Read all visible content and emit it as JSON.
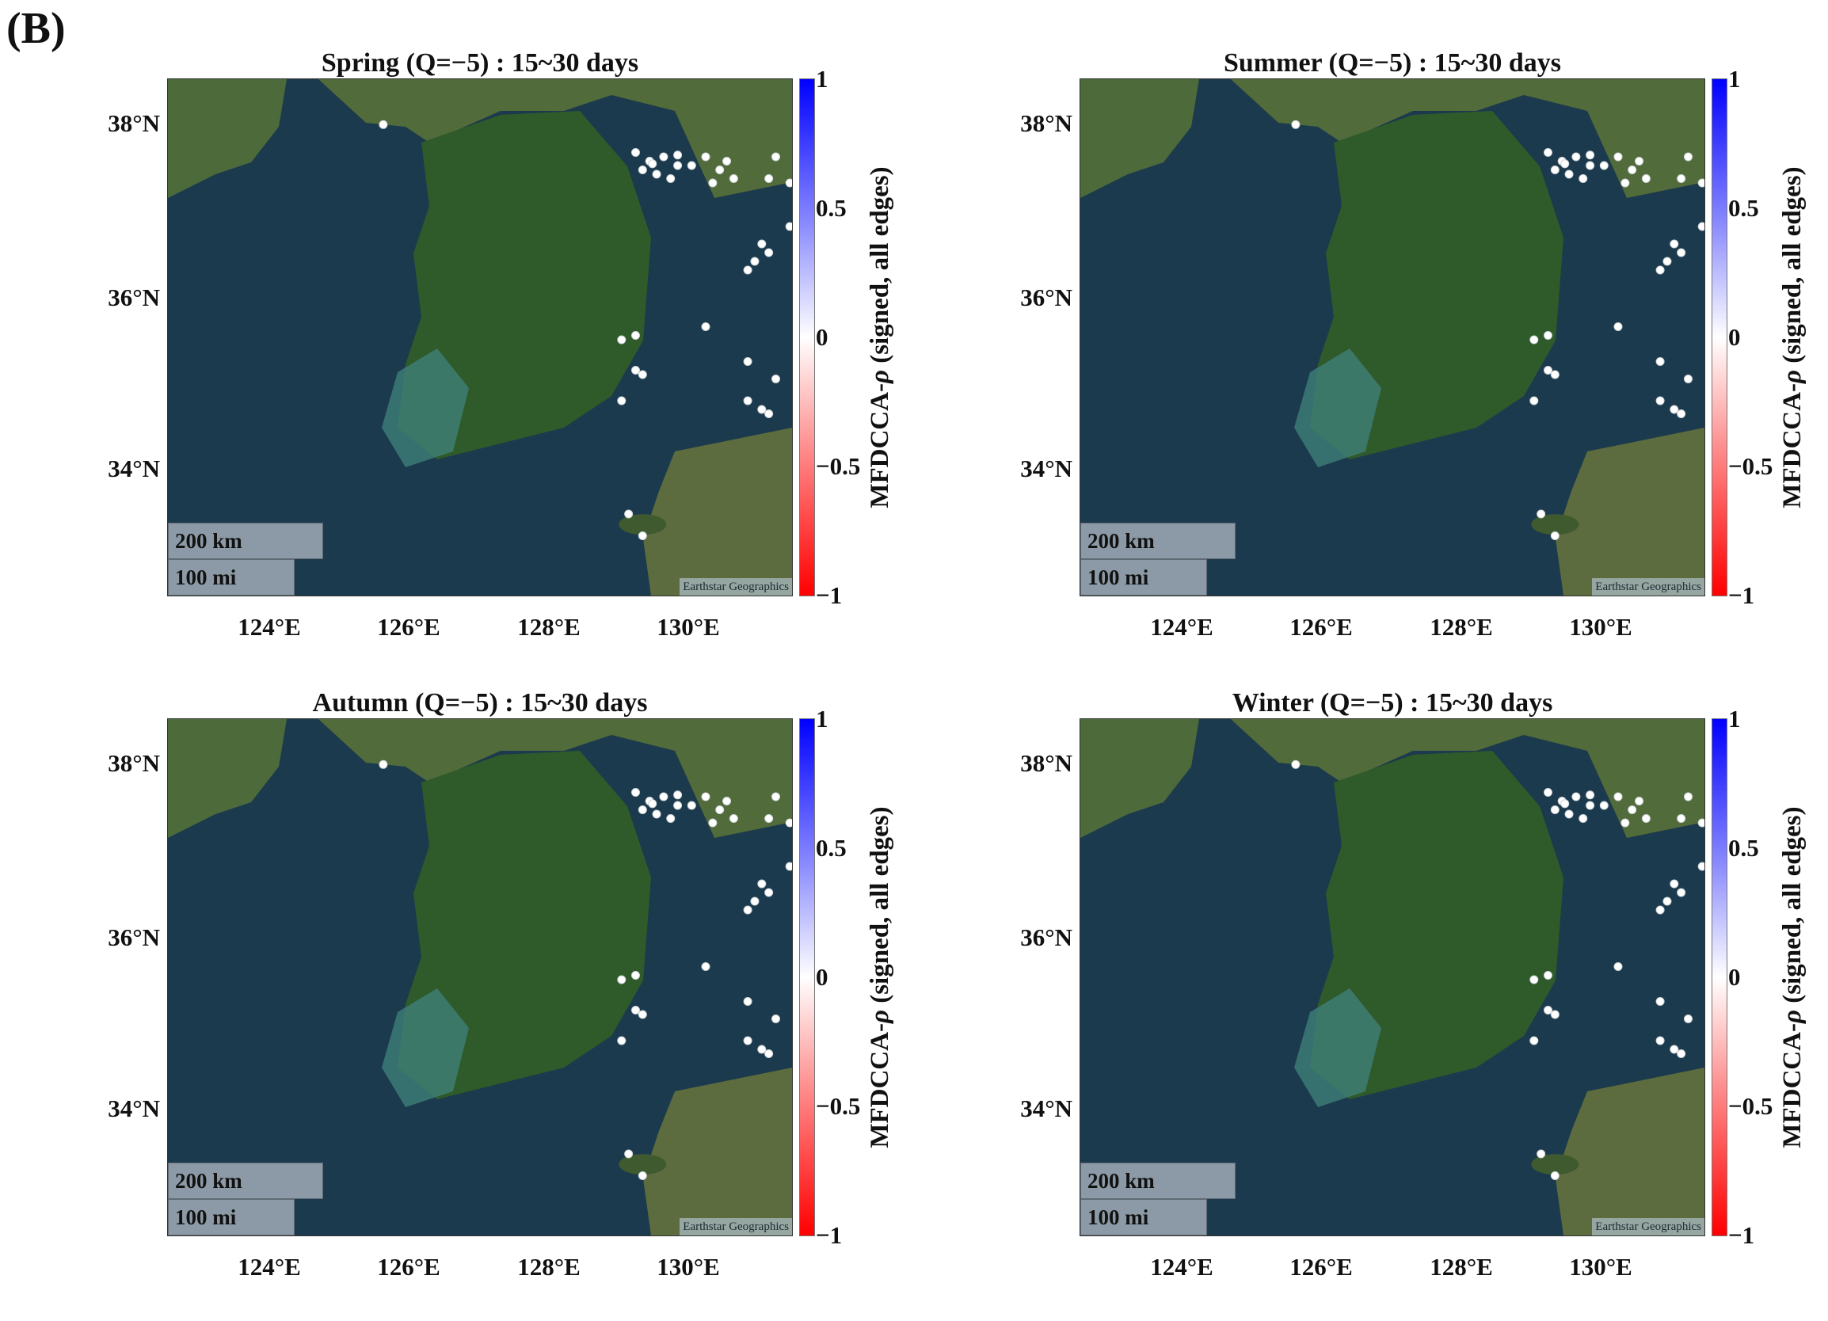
{
  "figure_label": "(B)",
  "panels": [
    {
      "title": "Spring (Q=−5) : 15~30 days"
    },
    {
      "title": "Summer (Q=−5) : 15~30 days"
    },
    {
      "title": "Autumn (Q=−5) : 15~30 days"
    },
    {
      "title": "Winter (Q=−5) : 15~30 days"
    }
  ],
  "map": {
    "lat_ticks": [
      "38°N",
      "36°N",
      "34°N"
    ],
    "lon_ticks": [
      "124°E",
      "126°E",
      "128°E",
      "130°E"
    ],
    "scale_km": "200 km",
    "scale_mi": "100 mi",
    "attribution": "Earthstar Geographics",
    "basemap_colors": {
      "sea": "#1c3a4d",
      "land": "#2f5a2a",
      "shallow": "#3f7f78"
    },
    "station_color": "#ffffff"
  },
  "colorbar": {
    "ticks": [
      "1",
      "0.5",
      "0",
      "−0.5",
      "−1"
    ],
    "label_prefix": "MFDCCA-",
    "label_symbol": "ρ",
    "label_suffix": " (signed, all edges)",
    "colors": {
      "top": "#0000ff",
      "mid": "#ffffff",
      "bottom": "#ff0000"
    }
  }
}
